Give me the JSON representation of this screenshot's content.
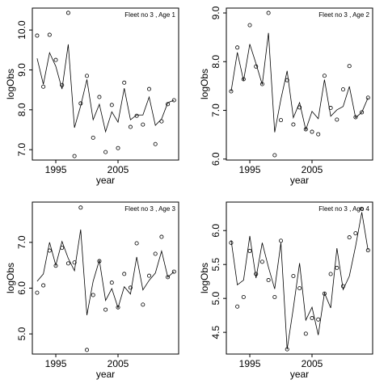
{
  "chart_data": [
    {
      "type": "scatter",
      "title": "Fleet no 3 , Age 1",
      "xlabel": "year",
      "ylabel": "logObs",
      "x": [
        1992,
        1993,
        1994,
        1995,
        1996,
        1997,
        1998,
        1999,
        2000,
        2001,
        2002,
        2003,
        2004,
        2005,
        2006,
        2007,
        2008,
        2009,
        2010,
        2011,
        2012,
        2013,
        2014
      ],
      "series": [
        {
          "style": "points",
          "color": "#000000",
          "values": [
            9.86,
            8.58,
            9.88,
            9.25,
            8.62,
            10.43,
            6.84,
            8.16,
            8.85,
            7.3,
            8.32,
            6.94,
            8.12,
            7.04,
            8.68,
            7.57,
            7.85,
            7.63,
            8.52,
            7.14,
            7.71,
            8.14,
            8.24
          ]
        },
        {
          "style": "line",
          "color": "#000000",
          "values": [
            9.29,
            8.64,
            9.43,
            9.09,
            8.52,
            9.64,
            7.55,
            8.1,
            8.76,
            7.75,
            8.14,
            7.45,
            7.95,
            7.69,
            8.54,
            7.75,
            7.87,
            7.87,
            8.32,
            7.61,
            7.77,
            8.18,
            8.24
          ]
        }
      ],
      "xlim": [
        1991.23,
        2014.74
      ],
      "xticks": [
        1995,
        2005
      ],
      "ylim": [
        6.74,
        10.55
      ],
      "yticks": [
        {
          "value": 7,
          "label": "7.0"
        },
        {
          "value": 8,
          "label": "8.0"
        },
        {
          "value": 9,
          "label": "9.0"
        },
        {
          "value": 10,
          "label": "10.0"
        }
      ]
    },
    {
      "type": "scatter",
      "title": "Fleet no 3 , Age 2",
      "xlabel": "year",
      "ylabel": "logObs",
      "x": [
        1992,
        1993,
        1994,
        1995,
        1996,
        1997,
        1998,
        1999,
        2000,
        2001,
        2002,
        2003,
        2004,
        2005,
        2006,
        2007,
        2008,
        2009,
        2010,
        2011,
        2012,
        2013,
        2014
      ],
      "series": [
        {
          "style": "points",
          "color": "#000000",
          "values": [
            7.39,
            8.29,
            7.64,
            8.75,
            7.9,
            7.54,
            9.0,
            6.08,
            6.8,
            7.62,
            6.71,
            7.06,
            6.61,
            6.56,
            6.51,
            7.71,
            7.05,
            6.81,
            7.43,
            7.91,
            6.86,
            6.96,
            7.26
          ]
        },
        {
          "style": "line",
          "color": "#000000",
          "values": [
            7.39,
            8.19,
            7.61,
            8.36,
            7.96,
            7.53,
            8.59,
            6.55,
            7.23,
            7.81,
            6.85,
            7.16,
            6.6,
            6.98,
            6.83,
            7.63,
            6.88,
            7.01,
            7.08,
            7.49,
            6.85,
            6.96,
            7.26
          ]
        }
      ],
      "xlim": [
        1991.23,
        2014.74
      ],
      "xticks": [
        1995,
        2005
      ],
      "ylim": [
        5.98,
        9.1
      ],
      "yticks": [
        {
          "value": 6,
          "label": "6.0"
        },
        {
          "value": 7,
          "label": "7.0"
        },
        {
          "value": 8,
          "label": "8.0"
        },
        {
          "value": 9,
          "label": "9.0"
        }
      ]
    },
    {
      "type": "scatter",
      "title": "Fleet no 3 , Age 3",
      "xlabel": "year",
      "ylabel": "logObs",
      "x": [
        1992,
        1993,
        1994,
        1995,
        1996,
        1997,
        1998,
        1999,
        2000,
        2001,
        2002,
        2003,
        2004,
        2005,
        2006,
        2007,
        2008,
        2009,
        2010,
        2011,
        2012,
        2013,
        2014
      ],
      "series": [
        {
          "style": "points",
          "color": "#000000",
          "values": [
            5.9,
            6.06,
            6.82,
            6.49,
            6.88,
            6.54,
            6.56,
            7.76,
            4.65,
            5.85,
            6.59,
            5.53,
            6.12,
            5.58,
            6.31,
            6.01,
            6.98,
            5.64,
            6.27,
            6.75,
            7.12,
            6.24,
            6.36
          ]
        },
        {
          "style": "line",
          "color": "#000000",
          "values": [
            6.15,
            6.31,
            7.0,
            6.5,
            7.02,
            6.65,
            6.38,
            7.28,
            5.41,
            6.15,
            6.61,
            5.73,
            5.99,
            5.57,
            6.03,
            5.87,
            6.68,
            5.96,
            6.17,
            6.33,
            6.81,
            6.24,
            6.36
          ]
        }
      ],
      "xlim": [
        1991.23,
        2014.74
      ],
      "xticks": [
        1995,
        2005
      ],
      "ylim": [
        4.56,
        7.88
      ],
      "yticks": [
        {
          "value": 5,
          "label": "5.0"
        },
        {
          "value": 6,
          "label": "6.0"
        },
        {
          "value": 7,
          "label": "7.0"
        }
      ]
    },
    {
      "type": "scatter",
      "title": "Fleet no 3 , Age 4",
      "xlabel": "year",
      "ylabel": "logObs",
      "x": [
        1992,
        1993,
        1994,
        1995,
        1996,
        1997,
        1998,
        1999,
        2000,
        2001,
        2002,
        2003,
        2004,
        2005,
        2006,
        2007,
        2008,
        2009,
        2010,
        2011,
        2012,
        2013,
        2014
      ],
      "series": [
        {
          "style": "points",
          "color": "#000000",
          "values": [
            5.82,
            4.88,
            5.02,
            5.7,
            5.36,
            5.54,
            5.27,
            5.02,
            5.85,
            4.25,
            5.33,
            5.15,
            4.48,
            4.71,
            4.69,
            5.07,
            5.36,
            5.45,
            5.18,
            5.9,
            5.96,
            6.32,
            5.71
          ]
        },
        {
          "style": "line",
          "color": "#000000",
          "values": [
            5.86,
            5.2,
            5.27,
            5.92,
            5.3,
            5.82,
            5.46,
            5.14,
            5.82,
            4.25,
            4.86,
            5.52,
            4.68,
            4.87,
            4.46,
            5.08,
            4.86,
            5.74,
            5.13,
            5.33,
            5.77,
            6.27,
            5.71
          ]
        }
      ],
      "xlim": [
        1991.23,
        2014.74
      ],
      "xticks": [
        1995,
        2005
      ],
      "ylim": [
        4.18,
        6.42
      ],
      "yticks": [
        4.5,
        {
          "value": 5,
          "label": "5.0"
        },
        {
          "value": 5.5,
          "label": "5.5"
        },
        {
          "value": 6,
          "label": "6.0"
        }
      ]
    }
  ]
}
